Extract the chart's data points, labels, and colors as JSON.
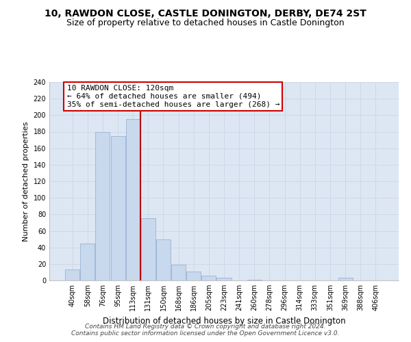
{
  "title": "10, RAWDON CLOSE, CASTLE DONINGTON, DERBY, DE74 2ST",
  "subtitle": "Size of property relative to detached houses in Castle Donington",
  "xlabel": "Distribution of detached houses by size in Castle Donington",
  "ylabel": "Number of detached properties",
  "bar_labels": [
    "40sqm",
    "58sqm",
    "76sqm",
    "95sqm",
    "113sqm",
    "131sqm",
    "150sqm",
    "168sqm",
    "186sqm",
    "205sqm",
    "223sqm",
    "241sqm",
    "260sqm",
    "278sqm",
    "296sqm",
    "314sqm",
    "333sqm",
    "351sqm",
    "369sqm",
    "388sqm",
    "406sqm"
  ],
  "bar_values": [
    13,
    45,
    180,
    175,
    195,
    75,
    50,
    19,
    11,
    6,
    3,
    0,
    1,
    0,
    0,
    0,
    0,
    0,
    3,
    0,
    0
  ],
  "bar_color": "#c8d8ed",
  "bar_edge_color": "#9ab4d4",
  "vline_x_index": 5,
  "vline_color": "#bb0000",
  "annotation_line1": "10 RAWDON CLOSE: 120sqm",
  "annotation_line2": "← 64% of detached houses are smaller (494)",
  "annotation_line3": "35% of semi-detached houses are larger (268) →",
  "annotation_box_color": "white",
  "annotation_box_edge_color": "#cc0000",
  "ylim": [
    0,
    240
  ],
  "yticks": [
    0,
    20,
    40,
    60,
    80,
    100,
    120,
    140,
    160,
    180,
    200,
    220,
    240
  ],
  "grid_color": "#cdd8e8",
  "background_color": "#dde6f3",
  "footer_line1": "Contains HM Land Registry data © Crown copyright and database right 2024.",
  "footer_line2": "Contains public sector information licensed under the Open Government Licence v3.0.",
  "title_fontsize": 10,
  "subtitle_fontsize": 9,
  "xlabel_fontsize": 8.5,
  "ylabel_fontsize": 8,
  "tick_fontsize": 7,
  "annotation_fontsize": 8,
  "footer_fontsize": 6.5
}
